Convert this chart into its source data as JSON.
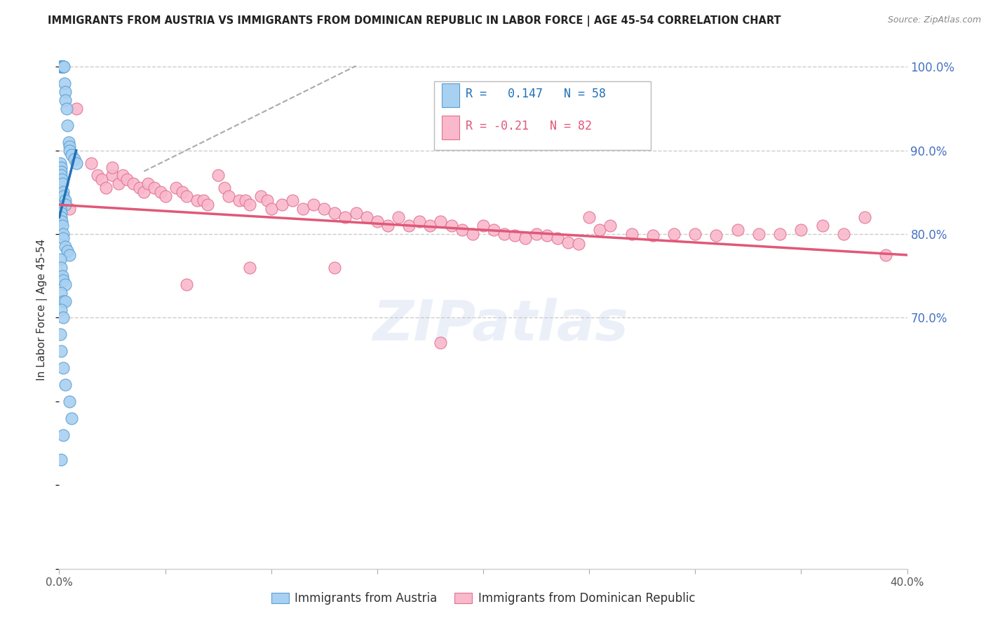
{
  "title": "IMMIGRANTS FROM AUSTRIA VS IMMIGRANTS FROM DOMINICAN REPUBLIC IN LABOR FORCE | AGE 45-54 CORRELATION CHART",
  "source": "Source: ZipAtlas.com",
  "ylabel": "In Labor Force | Age 45-54",
  "austria_R": 0.147,
  "austria_N": 58,
  "dr_R": -0.21,
  "dr_N": 82,
  "austria_color": "#a8d0f0",
  "austria_edge_color": "#5a9fd4",
  "austria_line_color": "#2171b5",
  "dr_color": "#f9b8cc",
  "dr_edge_color": "#e07090",
  "dr_line_color": "#e05878",
  "watermark": "ZIPatlas",
  "legend_label_austria": "Immigrants from Austria",
  "legend_label_dr": "Immigrants from Dominican Republic",
  "xmin": 0.0,
  "xmax": 0.4,
  "ymin": 0.4,
  "ymax": 1.02,
  "austria_x": [
    0.0005,
    0.0008,
    0.001,
    0.0012,
    0.0015,
    0.0018,
    0.002,
    0.002,
    0.0022,
    0.0025,
    0.003,
    0.003,
    0.0035,
    0.004,
    0.0045,
    0.005,
    0.005,
    0.006,
    0.007,
    0.008,
    0.0005,
    0.0008,
    0.001,
    0.001,
    0.0012,
    0.0015,
    0.002,
    0.002,
    0.003,
    0.003,
    0.0005,
    0.0008,
    0.001,
    0.0012,
    0.0015,
    0.002,
    0.002,
    0.003,
    0.004,
    0.005,
    0.0005,
    0.001,
    0.0015,
    0.002,
    0.003,
    0.001,
    0.002,
    0.003,
    0.001,
    0.002,
    0.0005,
    0.001,
    0.002,
    0.003,
    0.005,
    0.006,
    0.002,
    0.001
  ],
  "austria_y": [
    1.0,
    1.0,
    1.0,
    1.0,
    1.0,
    1.0,
    1.0,
    1.0,
    1.0,
    0.98,
    0.97,
    0.96,
    0.95,
    0.93,
    0.91,
    0.905,
    0.9,
    0.895,
    0.89,
    0.885,
    0.885,
    0.88,
    0.875,
    0.87,
    0.865,
    0.86,
    0.85,
    0.845,
    0.84,
    0.835,
    0.83,
    0.825,
    0.82,
    0.815,
    0.81,
    0.8,
    0.795,
    0.785,
    0.78,
    0.775,
    0.77,
    0.76,
    0.75,
    0.745,
    0.74,
    0.73,
    0.72,
    0.72,
    0.71,
    0.7,
    0.68,
    0.66,
    0.64,
    0.62,
    0.6,
    0.58,
    0.56,
    0.53
  ],
  "dr_x": [
    0.008,
    0.015,
    0.018,
    0.02,
    0.022,
    0.025,
    0.028,
    0.03,
    0.032,
    0.035,
    0.038,
    0.04,
    0.042,
    0.045,
    0.048,
    0.05,
    0.055,
    0.058,
    0.06,
    0.065,
    0.068,
    0.07,
    0.075,
    0.078,
    0.08,
    0.085,
    0.088,
    0.09,
    0.095,
    0.098,
    0.1,
    0.105,
    0.11,
    0.115,
    0.12,
    0.125,
    0.13,
    0.135,
    0.14,
    0.145,
    0.15,
    0.155,
    0.16,
    0.165,
    0.17,
    0.175,
    0.18,
    0.185,
    0.19,
    0.195,
    0.2,
    0.205,
    0.21,
    0.215,
    0.22,
    0.225,
    0.23,
    0.235,
    0.24,
    0.245,
    0.25,
    0.255,
    0.26,
    0.27,
    0.28,
    0.29,
    0.3,
    0.31,
    0.32,
    0.33,
    0.34,
    0.35,
    0.36,
    0.37,
    0.38,
    0.39,
    0.005,
    0.025,
    0.06,
    0.09,
    0.13,
    0.18
  ],
  "dr_y": [
    0.95,
    0.885,
    0.87,
    0.865,
    0.855,
    0.87,
    0.86,
    0.87,
    0.865,
    0.86,
    0.855,
    0.85,
    0.86,
    0.855,
    0.85,
    0.845,
    0.855,
    0.85,
    0.845,
    0.84,
    0.84,
    0.835,
    0.87,
    0.855,
    0.845,
    0.84,
    0.84,
    0.835,
    0.845,
    0.84,
    0.83,
    0.835,
    0.84,
    0.83,
    0.835,
    0.83,
    0.825,
    0.82,
    0.825,
    0.82,
    0.815,
    0.81,
    0.82,
    0.81,
    0.815,
    0.81,
    0.815,
    0.81,
    0.805,
    0.8,
    0.81,
    0.805,
    0.8,
    0.798,
    0.795,
    0.8,
    0.798,
    0.795,
    0.79,
    0.788,
    0.82,
    0.805,
    0.81,
    0.8,
    0.798,
    0.8,
    0.8,
    0.798,
    0.805,
    0.8,
    0.8,
    0.805,
    0.81,
    0.8,
    0.82,
    0.775,
    0.83,
    0.88,
    0.74,
    0.76,
    0.76,
    0.67
  ],
  "grid_color": "#cccccc",
  "right_axis_color": "#4472c4",
  "title_fontsize": 10.5,
  "axis_label_fontsize": 11,
  "legend_box_color": "#dddddd",
  "austria_line_x": [
    0.0,
    0.008
  ],
  "austria_line_y": [
    0.82,
    0.9
  ],
  "dr_line_x": [
    0.0,
    0.4
  ],
  "dr_line_y": [
    0.835,
    0.775
  ],
  "dash_line_x": [
    0.04,
    0.14
  ],
  "dash_line_y": [
    0.875,
    1.001
  ]
}
